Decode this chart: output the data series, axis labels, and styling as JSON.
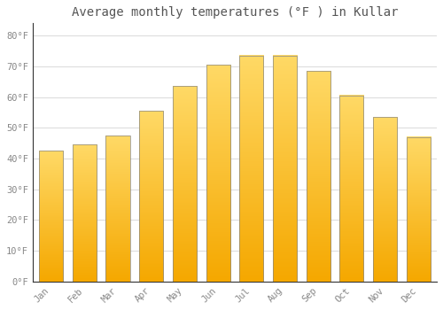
{
  "title": "Average monthly temperatures (°F ) in Kullar",
  "months": [
    "Jan",
    "Feb",
    "Mar",
    "Apr",
    "May",
    "Jun",
    "Jul",
    "Aug",
    "Sep",
    "Oct",
    "Nov",
    "Dec"
  ],
  "values": [
    42.5,
    44.5,
    47.5,
    55.5,
    63.5,
    70.5,
    73.5,
    73.5,
    68.5,
    60.5,
    53.5,
    47.0
  ],
  "bar_color_bottom": "#F5A800",
  "bar_color_top": "#FFD966",
  "bar_edge_color": "#888888",
  "background_color": "#FFFFFF",
  "plot_bg_color": "#FFFFFF",
  "grid_color": "#DDDDDD",
  "yticks": [
    0,
    10,
    20,
    30,
    40,
    50,
    60,
    70,
    80
  ],
  "ytick_labels": [
    "0°F",
    "10°F",
    "20°F",
    "30°F",
    "40°F",
    "50°F",
    "60°F",
    "70°F",
    "80°F"
  ],
  "ylim": [
    0,
    84
  ],
  "title_fontsize": 10,
  "tick_fontsize": 7.5,
  "font_color": "#888888",
  "title_color": "#555555",
  "bar_width": 0.72,
  "gradient_steps": 100
}
